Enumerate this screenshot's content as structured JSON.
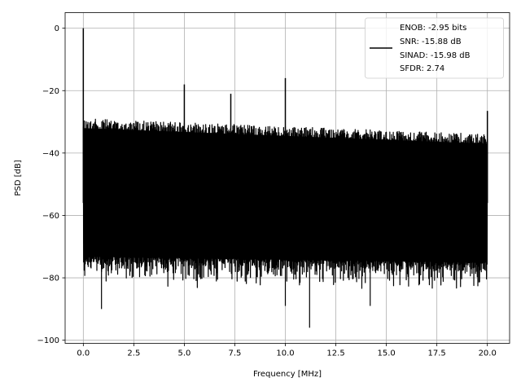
{
  "chart_data": {
    "type": "line",
    "title": "",
    "xlabel": "Frequency [MHz]",
    "ylabel": "PSD [dB]",
    "xlim": [
      -0.9,
      21.1
    ],
    "ylim": [
      -101,
      5
    ],
    "xticks": [
      0.0,
      2.5,
      5.0,
      7.5,
      10.0,
      12.5,
      15.0,
      17.5,
      20.0
    ],
    "xtick_labels": [
      "0.0",
      "2.5",
      "5.0",
      "7.5",
      "10.0",
      "12.5",
      "15.0",
      "17.5",
      "20.0"
    ],
    "yticks": [
      0,
      -20,
      -40,
      -60,
      -80,
      -100
    ],
    "ytick_labels": [
      "0",
      "−20",
      "−40",
      "−60",
      "−80",
      "−100"
    ],
    "grid": true,
    "legend_position": "top-right",
    "series": [
      {
        "name": "ENOB: -2.95 bits\nSNR: -15.88 dB\nSINAD: -15.98 dB\nSFDR: 2.74",
        "color": "#000000",
        "spikes": [
          {
            "x": 0.0,
            "y": 0
          },
          {
            "x": 5.0,
            "y": -18
          },
          {
            "x": 7.3,
            "y": -21
          },
          {
            "x": 10.0,
            "y": -16
          },
          {
            "x": 20.0,
            "y": -26.5
          }
        ],
        "noise_floor": {
          "x_range": [
            0.0,
            20.0
          ],
          "upper_envelope_start": -29,
          "upper_envelope_end": -34,
          "lower_body_start": -73,
          "lower_body_end": -75,
          "min_dips": [
            {
              "x": 0.9,
              "y": -90
            },
            {
              "x": 11.2,
              "y": -96
            },
            {
              "x": 14.2,
              "y": -89
            },
            {
              "x": 10.0,
              "y": -89
            }
          ]
        }
      }
    ],
    "legend_lines": [
      "ENOB: -2.95 bits",
      "SNR: -15.88 dB",
      "SINAD: -15.98 dB",
      "SFDR: 2.74"
    ]
  }
}
